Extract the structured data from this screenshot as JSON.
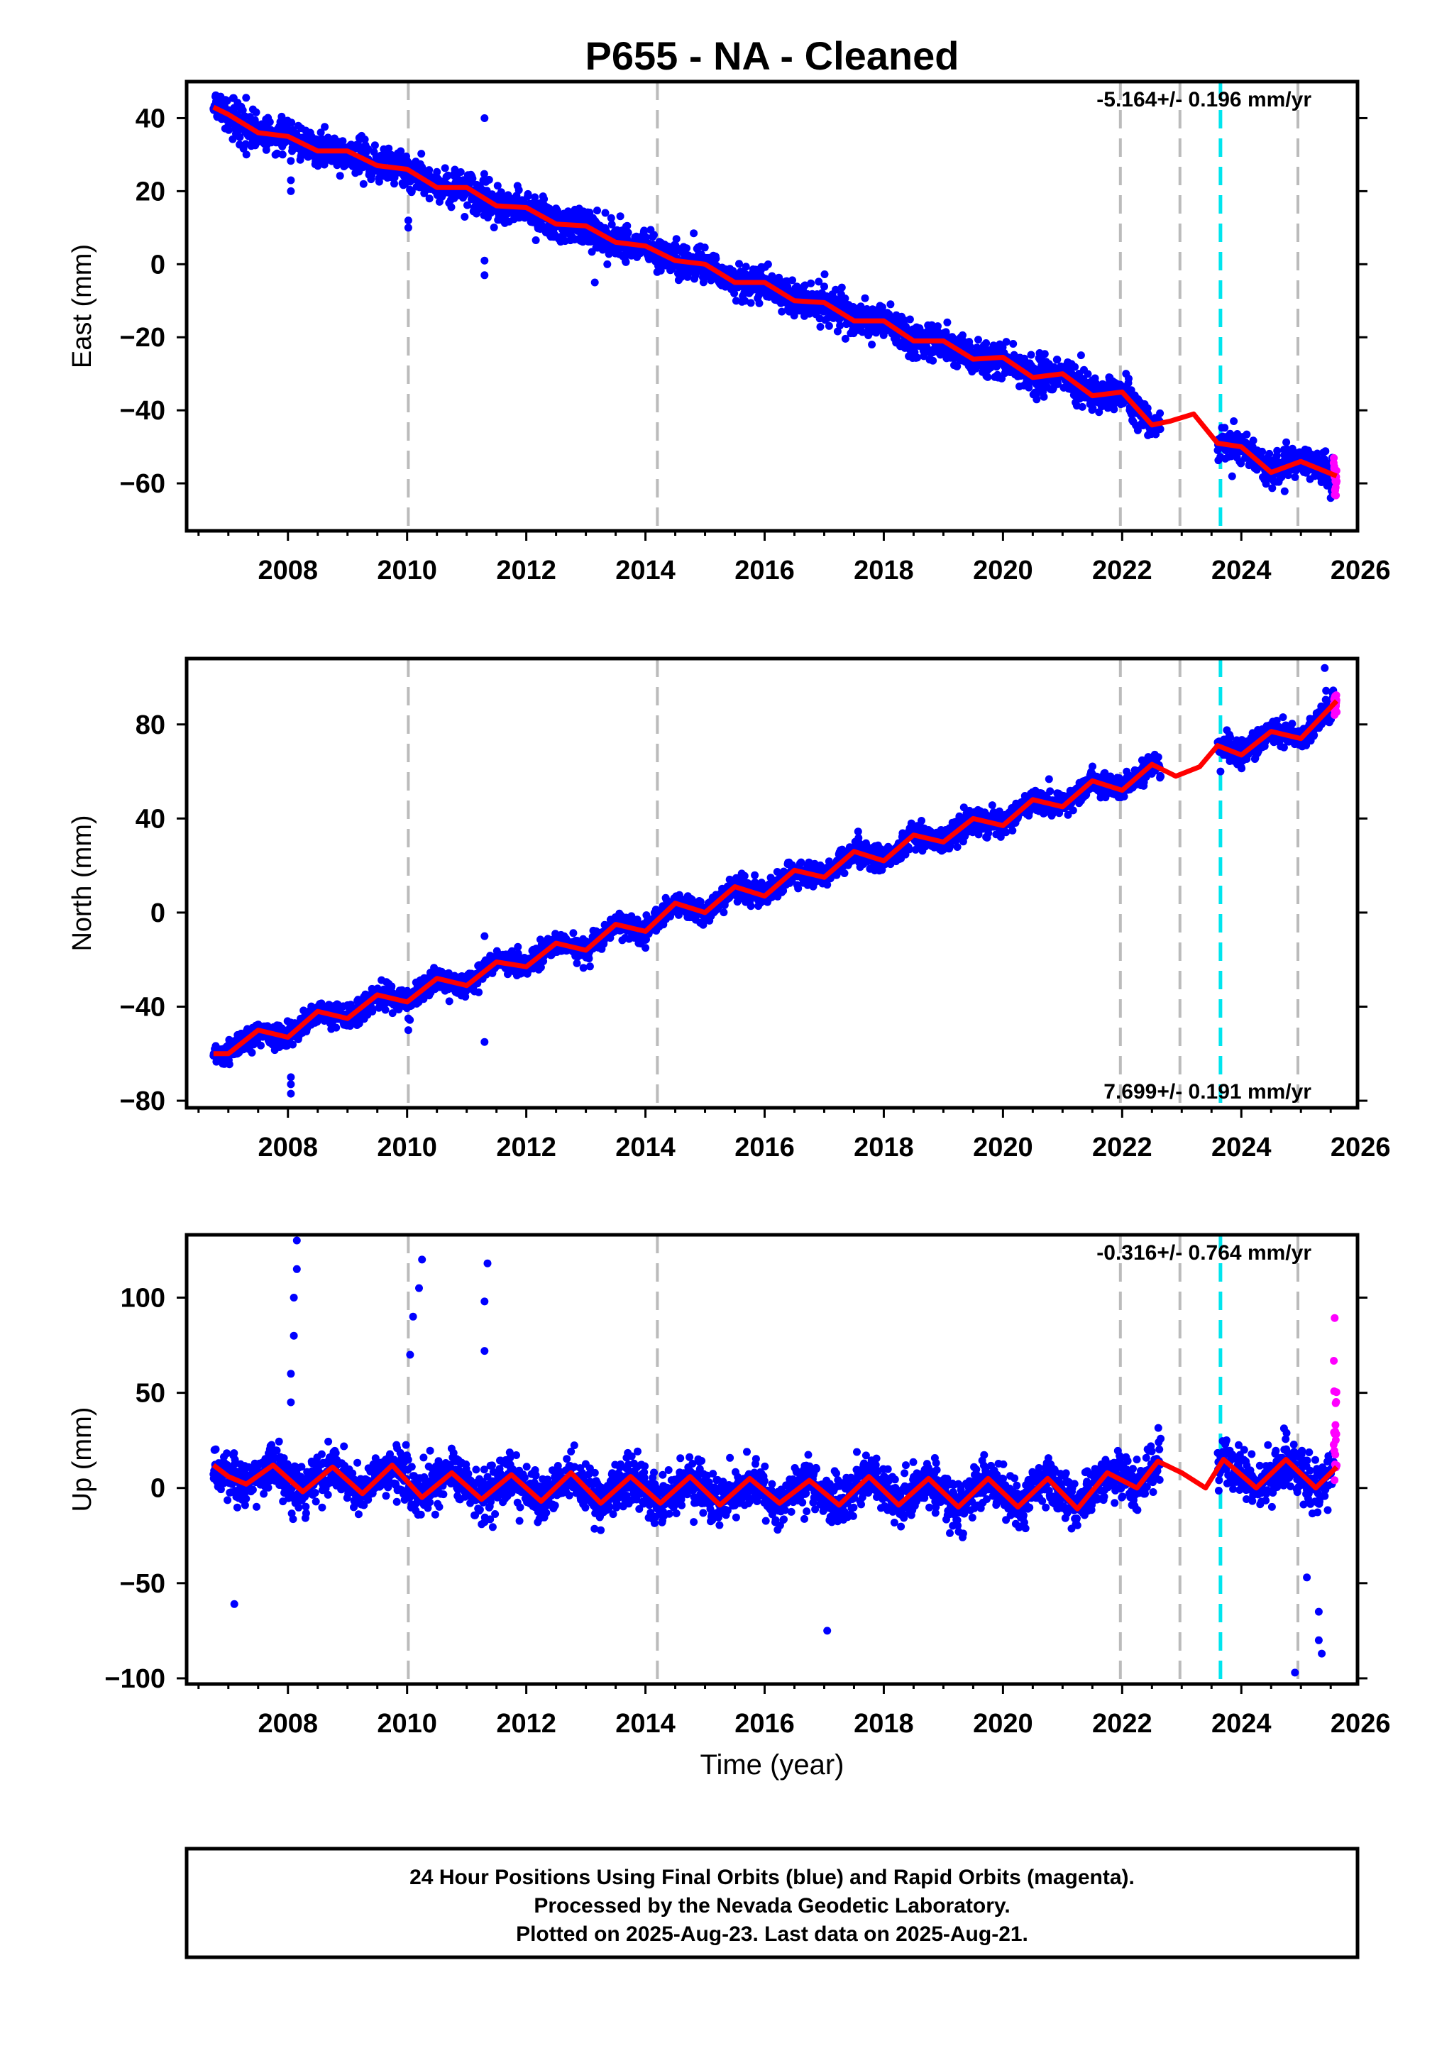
{
  "title": "P655  - NA - Cleaned",
  "xlabel": "Time (year)",
  "footer": [
    "24 Hour Positions Using Final Orbits (blue) and Rapid Orbits (magenta).",
    "Processed by the Nevada Geodetic Laboratory.",
    "Plotted on 2025-Aug-23. Last data on 2025-Aug-21."
  ],
  "colors": {
    "final_orbits": "#0000ff",
    "rapid_orbits": "#ff00ff",
    "model": "#ff0000",
    "equipment_change": "#bbbbbb",
    "earthquake": "#00e5ee"
  },
  "chart_data": [
    {
      "type": "scatter",
      "ylabel": "East (mm)",
      "rate_label": "-5.164+/- 0.196 mm/yr",
      "xlim": [
        2006.3,
        2025.95
      ],
      "ylim": [
        -73,
        50
      ],
      "xticks": [
        2008,
        2010,
        2012,
        2014,
        2016,
        2018,
        2020,
        2022,
        2024,
        2026
      ],
      "yticks": [
        -60,
        -40,
        -20,
        0,
        20,
        40
      ],
      "data_start": 2006.75,
      "data_end": 2025.6,
      "gap": [
        2022.65,
        2023.6
      ],
      "start_value": 44.5,
      "rate": -5.164,
      "annual_amplitude": 2.2,
      "noise": 2.3,
      "rapid_start": 2025.55,
      "rapid_spread": 7,
      "model_points": [
        [
          2006.75,
          43
        ],
        [
          2007.0,
          41
        ],
        [
          2007.5,
          36
        ],
        [
          2008.0,
          35
        ],
        [
          2008.5,
          31
        ],
        [
          2009.0,
          31
        ],
        [
          2009.5,
          27
        ],
        [
          2010.0,
          26
        ],
        [
          2010.5,
          21
        ],
        [
          2011.0,
          21
        ],
        [
          2011.5,
          16
        ],
        [
          2012.0,
          15.5
        ],
        [
          2012.5,
          11
        ],
        [
          2013.0,
          10.5
        ],
        [
          2013.5,
          6
        ],
        [
          2014.0,
          5
        ],
        [
          2014.5,
          1
        ],
        [
          2015.0,
          0
        ],
        [
          2015.5,
          -5
        ],
        [
          2016.0,
          -5
        ],
        [
          2016.5,
          -10
        ],
        [
          2017.0,
          -10.5
        ],
        [
          2017.5,
          -15.5
        ],
        [
          2018.0,
          -15.5
        ],
        [
          2018.5,
          -21
        ],
        [
          2019.0,
          -21
        ],
        [
          2019.5,
          -26
        ],
        [
          2020.0,
          -25.5
        ],
        [
          2020.5,
          -31
        ],
        [
          2021.0,
          -30
        ],
        [
          2021.5,
          -36
        ],
        [
          2022.0,
          -35
        ],
        [
          2022.5,
          -44
        ],
        [
          2022.8,
          -43
        ],
        [
          2023.2,
          -41
        ],
        [
          2023.6,
          -49
        ],
        [
          2024.0,
          -50
        ],
        [
          2024.5,
          -57
        ],
        [
          2025.0,
          -54
        ],
        [
          2025.6,
          -58
        ]
      ],
      "outliers": [
        [
          2008.05,
          20
        ],
        [
          2008.05,
          23
        ],
        [
          2010.02,
          10
        ],
        [
          2010.02,
          12
        ],
        [
          2011.3,
          40
        ],
        [
          2011.3,
          -3
        ],
        [
          2011.3,
          1
        ],
        [
          2013.15,
          -5
        ],
        [
          2017.8,
          -22
        ],
        [
          2025.5,
          -64
        ]
      ],
      "steps": [
        {
          "x": 2010.02,
          "kind": "equipment"
        },
        {
          "x": 2014.2,
          "kind": "equipment"
        },
        {
          "x": 2021.97,
          "kind": "equipment"
        },
        {
          "x": 2022.97,
          "kind": "equipment"
        },
        {
          "x": 2023.65,
          "kind": "earthquake"
        },
        {
          "x": 2024.95,
          "kind": "equipment"
        }
      ]
    },
    {
      "type": "scatter",
      "ylabel": "North (mm)",
      "rate_label": "7.699+/- 0.191 mm/yr",
      "xlim": [
        2006.3,
        2025.95
      ],
      "ylim": [
        -83,
        108
      ],
      "xticks": [
        2008,
        2010,
        2012,
        2014,
        2016,
        2018,
        2020,
        2022,
        2024,
        2026
      ],
      "yticks": [
        -80,
        -40,
        0,
        40,
        80
      ],
      "data_start": 2006.75,
      "data_end": 2025.6,
      "gap": [
        2022.65,
        2023.6
      ],
      "start_value": -60,
      "rate": 7.699,
      "annual_amplitude": 3.5,
      "noise": 2.5,
      "rapid_start": 2025.55,
      "rapid_spread": 6,
      "model_points": [
        [
          2006.75,
          -60
        ],
        [
          2007.0,
          -60
        ],
        [
          2007.5,
          -50
        ],
        [
          2008.0,
          -53
        ],
        [
          2008.5,
          -42
        ],
        [
          2009.0,
          -45
        ],
        [
          2009.5,
          -35
        ],
        [
          2010.0,
          -38
        ],
        [
          2010.5,
          -28
        ],
        [
          2011.0,
          -31
        ],
        [
          2011.5,
          -21
        ],
        [
          2012.0,
          -23
        ],
        [
          2012.5,
          -13
        ],
        [
          2013.0,
          -16
        ],
        [
          2013.5,
          -5
        ],
        [
          2014.0,
          -8
        ],
        [
          2014.5,
          4
        ],
        [
          2015.0,
          0
        ],
        [
          2015.5,
          11
        ],
        [
          2016.0,
          7
        ],
        [
          2016.5,
          18
        ],
        [
          2017.0,
          15
        ],
        [
          2017.5,
          26
        ],
        [
          2018.0,
          22
        ],
        [
          2018.5,
          33
        ],
        [
          2019.0,
          30
        ],
        [
          2019.5,
          40
        ],
        [
          2020.0,
          37
        ],
        [
          2020.5,
          48
        ],
        [
          2021.0,
          45
        ],
        [
          2021.5,
          56
        ],
        [
          2022.0,
          52
        ],
        [
          2022.5,
          63
        ],
        [
          2022.9,
          58
        ],
        [
          2023.3,
          62
        ],
        [
          2023.6,
          71
        ],
        [
          2024.0,
          67
        ],
        [
          2024.5,
          77
        ],
        [
          2025.0,
          74
        ],
        [
          2025.6,
          90
        ]
      ],
      "outliers": [
        [
          2008.05,
          -70
        ],
        [
          2008.05,
          -73
        ],
        [
          2008.05,
          -77
        ],
        [
          2010.02,
          -45
        ],
        [
          2010.02,
          -50
        ],
        [
          2011.3,
          -10
        ],
        [
          2011.3,
          -55
        ],
        [
          2014.0,
          -15
        ],
        [
          2023.65,
          60
        ],
        [
          2025.4,
          104
        ]
      ],
      "steps": [
        {
          "x": 2010.02,
          "kind": "equipment"
        },
        {
          "x": 2014.2,
          "kind": "equipment"
        },
        {
          "x": 2021.97,
          "kind": "equipment"
        },
        {
          "x": 2022.97,
          "kind": "equipment"
        },
        {
          "x": 2023.65,
          "kind": "earthquake"
        },
        {
          "x": 2024.95,
          "kind": "equipment"
        }
      ]
    },
    {
      "type": "scatter",
      "ylabel": "Up (mm)",
      "rate_label": "-0.316+/- 0.764 mm/yr",
      "xlim": [
        2006.3,
        2025.95
      ],
      "ylim": [
        -103,
        133
      ],
      "xticks": [
        2008,
        2010,
        2012,
        2014,
        2016,
        2018,
        2020,
        2022,
        2024,
        2026
      ],
      "yticks": [
        -100,
        -50,
        0,
        50,
        100
      ],
      "data_start": 2006.75,
      "data_end": 2025.6,
      "gap": [
        2022.65,
        2023.6
      ],
      "start_value": 4,
      "rate": -0.316,
      "annual_amplitude": 9,
      "noise": 6,
      "rapid_start": 2025.55,
      "rapid_spread": 22,
      "model_points": [
        [
          2006.75,
          12
        ],
        [
          2007.0,
          6
        ],
        [
          2007.3,
          2
        ],
        [
          2007.75,
          12
        ],
        [
          2008.25,
          -2
        ],
        [
          2008.75,
          11
        ],
        [
          2009.25,
          -3
        ],
        [
          2009.75,
          12
        ],
        [
          2010.25,
          -5
        ],
        [
          2010.75,
          8
        ],
        [
          2011.25,
          -6
        ],
        [
          2011.75,
          7
        ],
        [
          2012.25,
          -7
        ],
        [
          2012.75,
          8
        ],
        [
          2013.25,
          -8
        ],
        [
          2013.75,
          6
        ],
        [
          2014.25,
          -8
        ],
        [
          2014.75,
          6
        ],
        [
          2015.25,
          -9
        ],
        [
          2015.75,
          5
        ],
        [
          2016.25,
          -8
        ],
        [
          2016.75,
          4
        ],
        [
          2017.25,
          -9
        ],
        [
          2017.75,
          6
        ],
        [
          2018.25,
          -9
        ],
        [
          2018.75,
          5
        ],
        [
          2019.25,
          -10
        ],
        [
          2019.75,
          5
        ],
        [
          2020.25,
          -10
        ],
        [
          2020.75,
          5
        ],
        [
          2021.25,
          -11
        ],
        [
          2021.75,
          8
        ],
        [
          2022.25,
          0
        ],
        [
          2022.6,
          14
        ],
        [
          2023.0,
          8
        ],
        [
          2023.4,
          0
        ],
        [
          2023.7,
          15
        ],
        [
          2024.25,
          0
        ],
        [
          2024.75,
          15
        ],
        [
          2025.25,
          0
        ],
        [
          2025.6,
          11
        ]
      ],
      "outliers": [
        [
          2007.1,
          -61
        ],
        [
          2008.05,
          45
        ],
        [
          2008.05,
          60
        ],
        [
          2008.1,
          80
        ],
        [
          2008.1,
          100
        ],
        [
          2008.15,
          115
        ],
        [
          2008.15,
          130
        ],
        [
          2010.05,
          70
        ],
        [
          2010.1,
          90
        ],
        [
          2010.2,
          105
        ],
        [
          2010.25,
          120
        ],
        [
          2011.3,
          72
        ],
        [
          2011.3,
          98
        ],
        [
          2011.35,
          118
        ],
        [
          2017.05,
          -75
        ],
        [
          2024.9,
          -97
        ],
        [
          2025.1,
          -47
        ],
        [
          2025.3,
          -65
        ],
        [
          2025.3,
          -80
        ],
        [
          2025.35,
          -87
        ]
      ],
      "steps": [
        {
          "x": 2010.02,
          "kind": "equipment"
        },
        {
          "x": 2014.2,
          "kind": "equipment"
        },
        {
          "x": 2021.97,
          "kind": "equipment"
        },
        {
          "x": 2022.97,
          "kind": "equipment"
        },
        {
          "x": 2023.65,
          "kind": "earthquake"
        },
        {
          "x": 2024.95,
          "kind": "equipment"
        }
      ]
    }
  ]
}
